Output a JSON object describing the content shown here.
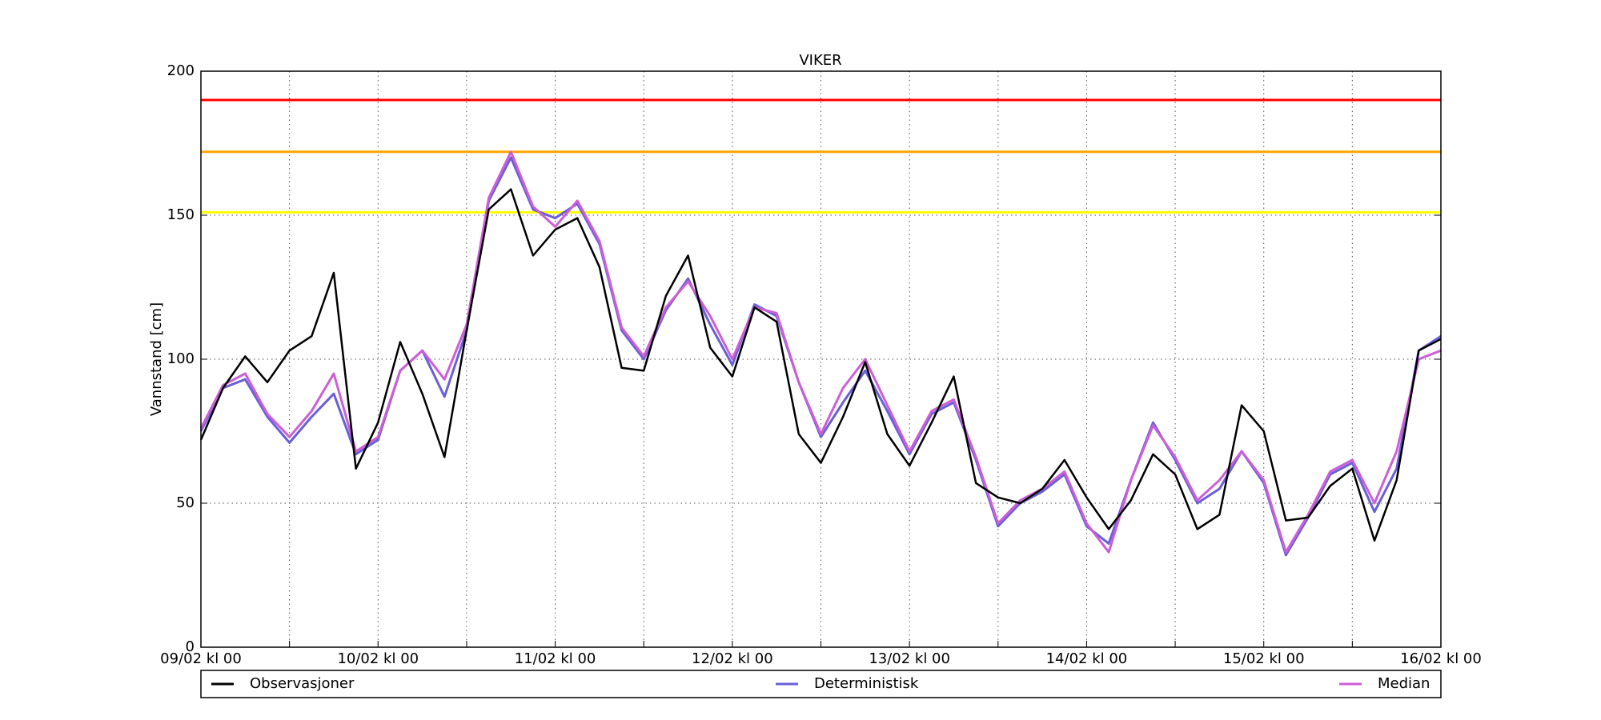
{
  "chart_data": {
    "type": "line",
    "title": "VIKER",
    "y_label": "Vannstand [cm]",
    "x": [
      0,
      3,
      6,
      9,
      12,
      15,
      18,
      21,
      24,
      27,
      30,
      33,
      36,
      39,
      42,
      45,
      48,
      51,
      54,
      57,
      60,
      63,
      66,
      69,
      72,
      75,
      78,
      81,
      84,
      87,
      90,
      93,
      96,
      99,
      102,
      105,
      108,
      111,
      114,
      117,
      120,
      123,
      126,
      129,
      132,
      135,
      138,
      141,
      144,
      147,
      150,
      153,
      156,
      159,
      162,
      165,
      168
    ],
    "series": [
      {
        "name": "Observasjoner",
        "color": "#000000",
        "values": [
          72,
          90,
          101,
          92,
          103,
          108,
          130,
          62,
          78,
          106,
          88,
          66,
          110,
          152,
          159,
          136,
          145,
          149,
          132,
          97,
          96,
          122,
          136,
          104,
          94,
          118,
          113,
          74,
          64,
          80,
          99,
          74,
          63,
          78,
          94,
          57,
          52,
          50,
          55,
          65,
          52,
          41,
          51,
          67,
          60,
          41,
          46,
          84,
          75,
          44,
          45,
          56,
          62,
          37,
          58,
          103,
          107
        ]
      },
      {
        "name": "Deterministisk",
        "color": "#6a5fd6",
        "values": [
          75,
          90,
          93,
          80,
          71,
          80,
          88,
          67,
          72,
          96,
          103,
          87,
          110,
          155,
          170,
          152,
          149,
          154,
          140,
          110,
          100,
          117,
          128,
          112,
          98,
          119,
          115,
          92,
          73,
          85,
          96,
          82,
          67,
          81,
          85,
          65,
          42,
          50,
          54,
          60,
          42,
          36,
          58,
          78,
          65,
          50,
          55,
          68,
          57,
          32,
          45,
          60,
          64,
          47,
          62,
          103,
          108
        ]
      },
      {
        "name": "Median",
        "color": "#cc5fd6",
        "values": [
          76,
          91,
          95,
          81,
          73,
          82,
          95,
          68,
          73,
          96,
          103,
          93,
          112,
          156,
          172,
          153,
          146,
          155,
          141,
          111,
          101,
          118,
          127,
          115,
          100,
          118,
          116,
          92,
          74,
          90,
          100,
          84,
          68,
          82,
          86,
          66,
          43,
          51,
          55,
          61,
          43,
          33,
          58,
          77,
          66,
          51,
          58,
          68,
          58,
          33,
          46,
          61,
          65,
          50,
          68,
          100,
          103
        ]
      }
    ],
    "hlines": [
      {
        "value": 190,
        "color": "#ff0000"
      },
      {
        "value": 172,
        "color": "#ffa500"
      },
      {
        "value": 151,
        "color": "#ffff00"
      }
    ],
    "xlim": [
      0,
      168
    ],
    "xticks": [
      {
        "value": 0,
        "label": "09/02 kl 00"
      },
      {
        "value": 24,
        "label": "10/02 kl 00"
      },
      {
        "value": 48,
        "label": "11/02 kl 00"
      },
      {
        "value": 72,
        "label": "12/02 kl 00"
      },
      {
        "value": 96,
        "label": "13/02 kl 00"
      },
      {
        "value": 120,
        "label": "14/02 kl 00"
      },
      {
        "value": 144,
        "label": "15/02 kl 00"
      },
      {
        "value": 168,
        "label": "16/02 kl 00"
      }
    ],
    "xminorticks": [
      12,
      36,
      60,
      84,
      108,
      132,
      156
    ],
    "ylim": [
      0,
      200
    ],
    "yticks": [
      0,
      50,
      100,
      150,
      200
    ],
    "grid": true,
    "legend": "bottom"
  }
}
